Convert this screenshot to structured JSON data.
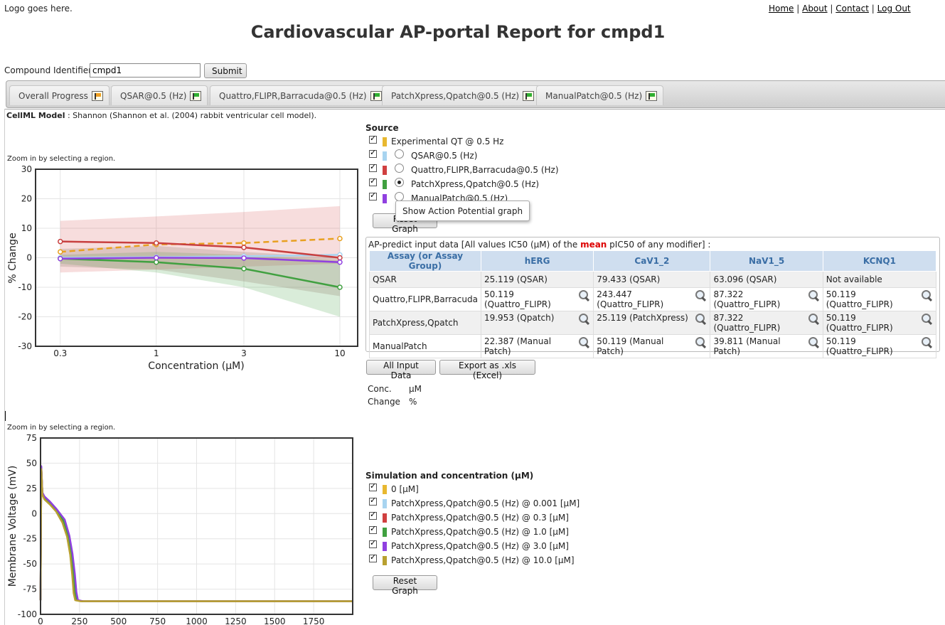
{
  "header": {
    "logo_text": "Logo goes here.",
    "nav": [
      {
        "label": "Home"
      },
      {
        "label": "About"
      },
      {
        "label": "Contact"
      },
      {
        "label": "Log Out"
      }
    ],
    "title": "Cardiovascular AP-portal Report for cmpd1"
  },
  "compound": {
    "label": "Compound Identifier :",
    "value": "cmpd1",
    "submit_label": "Submit"
  },
  "tabs": [
    {
      "label": "Overall Progress",
      "flag_color": "#f0a020"
    },
    {
      "label": "QSAR@0.5 (Hz)",
      "flag_color": "#30b030"
    },
    {
      "label": "Quattro,FLIPR,Barracuda@0.5 (Hz)",
      "flag_color": "#30b030"
    },
    {
      "label": "PatchXpress,Qpatch@0.5 (Hz)",
      "flag_color": "#30b030"
    },
    {
      "label": "ManualPatch@0.5 (Hz)",
      "flag_color": "#30b030"
    }
  ],
  "cellml": {
    "label": "CellML Model",
    "value": ": Shannon (Shannon et al. (2004) rabbit ventricular cell model)."
  },
  "zoom_hint": "Zoom in by selecting a region.",
  "source": {
    "title": "Source",
    "items": [
      {
        "label": "Experimental QT @ 0.5 Hz",
        "color": "#e8b830",
        "radio": "none"
      },
      {
        "label": "QSAR@0.5 (Hz)",
        "color": "#a8d4f0",
        "radio": "off"
      },
      {
        "label": "Quattro,FLIPR,Barracuda@0.5 (Hz)",
        "color": "#d04040",
        "radio": "off"
      },
      {
        "label": "PatchXpress,Qpatch@0.5 (Hz)",
        "color": "#40a040",
        "radio": "on"
      },
      {
        "label": "ManualPatch@0.5 (Hz)",
        "color": "#9040e0",
        "radio": "off"
      }
    ],
    "tooltip": "Show Action Potential graph",
    "reset_label": "Reset Graph"
  },
  "ic50": {
    "caption_pre": "AP-predict input data [All values IC50 (μM) of the ",
    "caption_mean": "mean",
    "caption_post": " pIC50 of any modifier] :",
    "headers": [
      "Assay (or Assay Group)",
      "hERG",
      "CaV1_2",
      "NaV1_5",
      "KCNQ1"
    ],
    "rows": [
      {
        "assay": "QSAR",
        "cells": [
          "25.119 (QSAR)",
          "79.433 (QSAR)",
          "63.096 (QSAR)",
          "Not available"
        ],
        "mag": [
          false,
          false,
          false,
          false
        ]
      },
      {
        "assay": "Quattro,FLIPR,Barracuda",
        "cells": [
          "50.119 (Quattro_FLIPR)",
          "243.447 (Quattro_FLIPR)",
          "87.322 (Quattro_FLIPR)",
          "50.119 (Quattro_FLIPR)"
        ],
        "mag": [
          true,
          true,
          true,
          true
        ]
      },
      {
        "assay": "PatchXpress,Qpatch",
        "cells": [
          "19.953 (Qpatch)",
          "25.119 (PatchXpress)",
          "87.322 (Quattro_FLIPR)",
          "50.119 (Quattro_FLIPR)"
        ],
        "mag": [
          true,
          true,
          true,
          true
        ]
      },
      {
        "assay": "ManualPatch",
        "cells": [
          "22.387 (Manual Patch)",
          "50.119 (Manual Patch)",
          "39.811 (Manual Patch)",
          "50.119 (Quattro_FLIPR)"
        ],
        "mag": [
          true,
          true,
          true,
          true
        ]
      }
    ],
    "all_input_label": "All Input Data",
    "export_label": "Export as .xls (Excel)"
  },
  "units": [
    {
      "name": "Conc.",
      "unit": "μM"
    },
    {
      "name": "Change",
      "unit": "%"
    }
  ],
  "sim": {
    "title": "Simulation and concentration (μM)",
    "items": [
      {
        "label": "0 [μM]",
        "color": "#e8b830"
      },
      {
        "label": "PatchXpress,Qpatch@0.5 (Hz) @ 0.001 [μM]",
        "color": "#a8d4f0"
      },
      {
        "label": "PatchXpress,Qpatch@0.5 (Hz) @ 0.3 [μM]",
        "color": "#d04040"
      },
      {
        "label": "PatchXpress,Qpatch@0.5 (Hz) @ 1.0 [μM]",
        "color": "#40a040"
      },
      {
        "label": "PatchXpress,Qpatch@0.5 (Hz) @ 3.0 [μM]",
        "color": "#9040e0"
      },
      {
        "label": "PatchXpress,Qpatch@0.5 (Hz) @ 10.0 [μM]",
        "color": "#b8a030"
      }
    ],
    "reset_label": "Reset Graph"
  },
  "chart_data": [
    {
      "type": "line",
      "xlabel": "Concentration (μM)",
      "ylabel": "% Change",
      "x_scale": "log",
      "x": [
        0.3,
        1,
        3,
        10
      ],
      "x_ticks": [
        "0.3",
        "1",
        "3",
        "10"
      ],
      "ylim": [
        -30,
        30
      ],
      "y_ticks": [
        30,
        20,
        10,
        0,
        -10,
        -20,
        -30
      ],
      "grid": true,
      "series": [
        {
          "name": "Experimental QT @ 0.5 Hz",
          "color": "#e8a020",
          "dashed": true,
          "values": [
            2,
            4.5,
            5,
            6.5
          ]
        },
        {
          "name": "QSAR@0.5 (Hz)",
          "color": "#a8d4f0",
          "values": [
            0,
            0.2,
            0.5,
            1
          ]
        },
        {
          "name": "Quattro,FLIPR,Barracuda@0.5 (Hz)",
          "color": "#c84040",
          "values": [
            5.5,
            5,
            3.5,
            0
          ],
          "band": [
            [
              -5,
              12.5
            ],
            [
              -4,
              14
            ],
            [
              -3,
              15.5
            ],
            [
              -2,
              17.5
            ]
          ],
          "band_color": "rgba(220,100,100,0.22)"
        },
        {
          "name": "PatchXpress,Qpatch@0.5 (Hz)",
          "color": "#40a040",
          "values": [
            -0.3,
            -1.5,
            -3.7,
            -10
          ],
          "band": [
            [
              -2,
              1
            ],
            [
              -5,
              2
            ],
            [
              -10,
              1
            ],
            [
              -20,
              -1
            ]
          ],
          "band_color": "rgba(80,170,80,0.22)"
        },
        {
          "name": "ManualPatch@0.5 (Hz)",
          "color": "#9040e0",
          "values": [
            -0.3,
            0,
            -0.1,
            -1.5
          ],
          "band": [
            [
              -3,
              3
            ],
            [
              -4,
              4
            ],
            [
              -8,
              2
            ],
            [
              -13,
              0
            ]
          ],
          "band_color": "rgba(130,110,90,0.22)"
        }
      ]
    },
    {
      "type": "line",
      "xlabel": "",
      "ylabel": "Membrane Voltage (mV)",
      "xlim": [
        0,
        2000
      ],
      "x_ticks": [
        0,
        250,
        500,
        750,
        1000,
        1250,
        1500,
        1750
      ],
      "ylim": [
        -100,
        75
      ],
      "y_ticks": [
        75,
        50,
        25,
        0,
        -25,
        -50,
        -75,
        -100
      ],
      "grid": true,
      "series": [
        {
          "name": "0 [μM]",
          "color": "#e8b830",
          "x": [
            0,
            5,
            12,
            25,
            60,
            100,
            140,
            170,
            190,
            205,
            215,
            225,
            260,
            400,
            1000,
            2000
          ],
          "values": [
            -86,
            45,
            20,
            15,
            10,
            3,
            -8,
            -22,
            -40,
            -60,
            -78,
            -86,
            -87,
            -87,
            -87,
            -87
          ]
        },
        {
          "name": "PatchXpress,Qpatch@0.5 (Hz) @ 0.001 [μM]",
          "color": "#a8d4f0",
          "x": [
            0,
            5,
            12,
            25,
            60,
            100,
            140,
            170,
            190,
            205,
            215,
            225,
            260,
            400,
            1000,
            2000
          ],
          "values": [
            -86,
            45,
            20,
            15,
            10,
            3,
            -8,
            -22,
            -40,
            -60,
            -78,
            -86,
            -87,
            -87,
            -87,
            -87
          ]
        },
        {
          "name": "PatchXpress,Qpatch@0.5 (Hz) @ 0.3 [μM]",
          "color": "#d04040",
          "x": [
            0,
            5,
            12,
            25,
            60,
            100,
            145,
            175,
            195,
            210,
            220,
            230,
            265,
            400,
            1000,
            2000
          ],
          "values": [
            -86,
            46,
            20,
            16,
            11,
            4,
            -7,
            -22,
            -40,
            -60,
            -78,
            -86,
            -87,
            -87,
            -87,
            -87
          ]
        },
        {
          "name": "PatchXpress,Qpatch@0.5 (Hz) @ 1.0 [μM]",
          "color": "#40a040",
          "x": [
            0,
            5,
            12,
            25,
            60,
            100,
            148,
            178,
            198,
            213,
            223,
            233,
            268,
            400,
            1000,
            2000
          ],
          "values": [
            -86,
            46,
            20,
            16,
            11,
            4,
            -7,
            -22,
            -40,
            -60,
            -78,
            -86,
            -87,
            -87,
            -87,
            -87
          ]
        },
        {
          "name": "PatchXpress,Qpatch@0.5 (Hz) @ 3.0 [μM]",
          "color": "#9040e0",
          "x": [
            0,
            5,
            12,
            25,
            60,
            100,
            155,
            185,
            205,
            220,
            230,
            240,
            275,
            400,
            1000,
            2000
          ],
          "values": [
            -86,
            47,
            21,
            17,
            12,
            5,
            -6,
            -22,
            -40,
            -60,
            -78,
            -86,
            -87,
            -87,
            -87,
            -87
          ]
        },
        {
          "name": "PatchXpress,Qpatch@0.5 (Hz) @ 10.0 [μM]",
          "color": "#b8a030",
          "x": [
            0,
            5,
            12,
            25,
            60,
            100,
            140,
            170,
            190,
            203,
            212,
            222,
            255,
            400,
            1000,
            2000
          ],
          "values": [
            -86,
            44,
            19,
            14,
            9,
            2,
            -9,
            -23,
            -41,
            -61,
            -79,
            -86,
            -87,
            -87,
            -87,
            -87
          ]
        }
      ]
    }
  ]
}
